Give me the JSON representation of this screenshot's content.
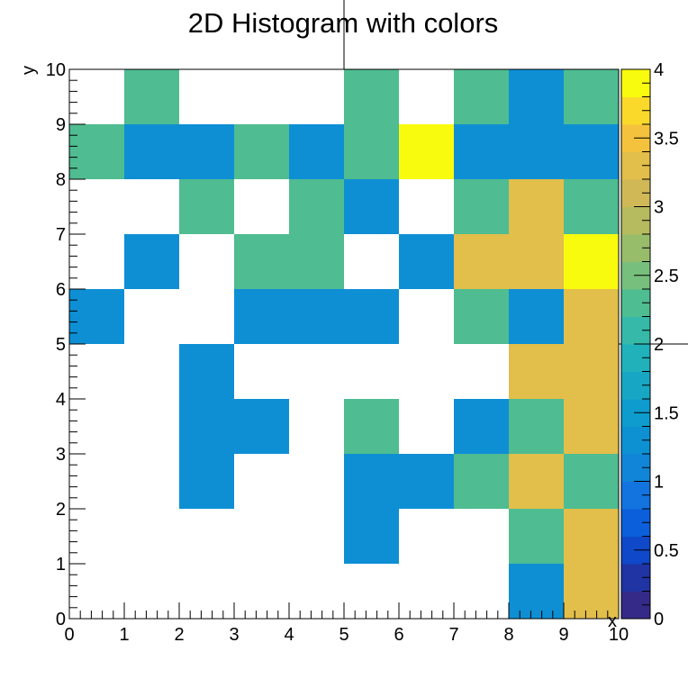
{
  "chart_data": {
    "type": "heatmap",
    "title": "2D Histogram with colors",
    "xlabel": "x",
    "ylabel": "y",
    "xlim": [
      0,
      10
    ],
    "ylim": [
      0,
      10
    ],
    "zlim": [
      0,
      4
    ],
    "x_ticks": [
      "0",
      "1",
      "2",
      "3",
      "4",
      "5",
      "6",
      "7",
      "8",
      "9",
      "10"
    ],
    "y_ticks": [
      "0",
      "1",
      "2",
      "3",
      "4",
      "5",
      "6",
      "7",
      "8",
      "9",
      "10"
    ],
    "z_ticks": [
      "0",
      "0.5",
      "1",
      "1.5",
      "2",
      "2.5",
      "3",
      "3.5",
      "4"
    ],
    "grid": false,
    "colorbar": "right",
    "cells_y_descending": [
      [
        0,
        2,
        0,
        0,
        0,
        2,
        0,
        2,
        1,
        2
      ],
      [
        2,
        1,
        1,
        2,
        1,
        2,
        4,
        1,
        1,
        1
      ],
      [
        0,
        0,
        2,
        0,
        2,
        1,
        0,
        2,
        3,
        2
      ],
      [
        0,
        1,
        0,
        2,
        2,
        0,
        1,
        3,
        3,
        4
      ],
      [
        1,
        0,
        0,
        1,
        1,
        1,
        0,
        2,
        1,
        3
      ],
      [
        0,
        0,
        1,
        0,
        0,
        0,
        0,
        0,
        3,
        3
      ],
      [
        0,
        0,
        1,
        1,
        0,
        2,
        0,
        1,
        2,
        3
      ],
      [
        0,
        0,
        1,
        0,
        0,
        1,
        1,
        2,
        3,
        2
      ],
      [
        0,
        0,
        0,
        0,
        0,
        1,
        0,
        0,
        2,
        3
      ],
      [
        0,
        0,
        0,
        0,
        0,
        0,
        0,
        0,
        1,
        3
      ]
    ],
    "palette": [
      "#352a87",
      "#2034a3",
      "#0f48c8",
      "#0b5fdb",
      "#1373df",
      "#1185d7",
      "#0d91d2",
      "#0d9ccd",
      "#17a7c4",
      "#20b1bb",
      "#36b9a8",
      "#4ebd92",
      "#76bf7c",
      "#98bd6a",
      "#b5bb5e",
      "#d0b857",
      "#e2be4a",
      "#f4c23c",
      "#fad92a",
      "#f9fb0e"
    ],
    "value_colors": {
      "1": "#0e8fd4",
      "2": "#4fbc91",
      "3": "#e2be4a",
      "4": "#f9fb0e"
    }
  }
}
